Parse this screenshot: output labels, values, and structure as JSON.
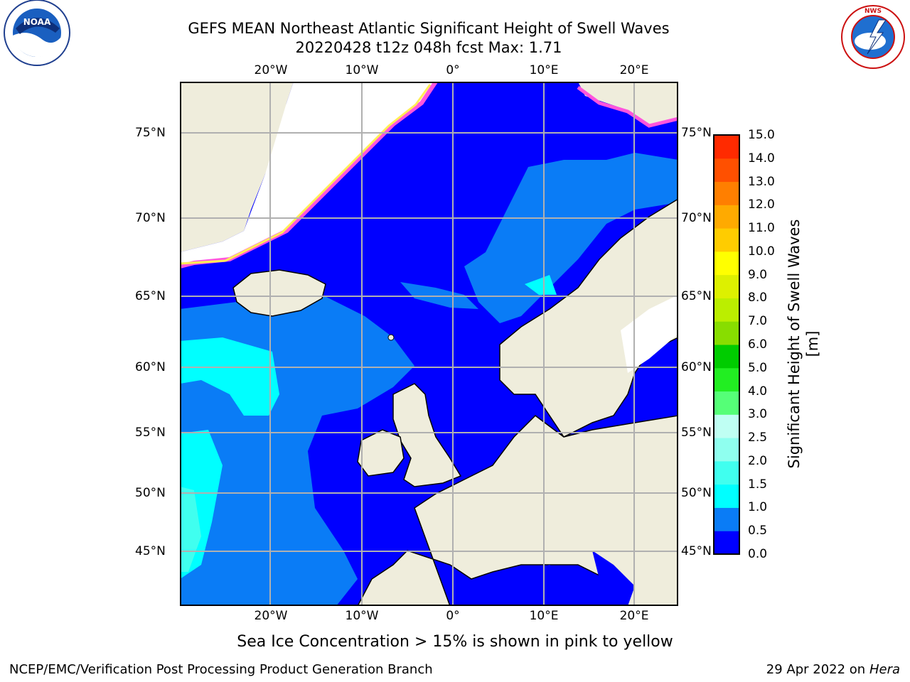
{
  "title": {
    "line1": "GEFS MEAN Northeast Atlantic Significant Height of Swell Waves",
    "line2": "20220428 t12z 048h fcst   Max: 1.71"
  },
  "map": {
    "projection": "Stereographic",
    "lon_range": [
      -30,
      25
    ],
    "lat_range": [
      41,
      78
    ],
    "grid": true,
    "lon_labels": [
      "20°W",
      "10°W",
      "0°",
      "10°E",
      "20°E"
    ],
    "lat_labels": [
      "75°N",
      "70°N",
      "65°N",
      "60°N",
      "55°N",
      "50°N",
      "45°N"
    ],
    "colors": {
      "ocean_low": "#0000ff",
      "ocean_mid": "#0a7cf6",
      "ocean_high": "#00ffff",
      "land": "#efeddc",
      "ice_pink": "#ff55dd",
      "ice_yellow": "#ffee55"
    }
  },
  "colorbar": {
    "label": "Significant Height of Swell Waves [m]",
    "ticks": [
      "0.0",
      "0.5",
      "1.0",
      "1.5",
      "2.0",
      "2.5",
      "3.0",
      "4.0",
      "5.0",
      "6.0",
      "7.0",
      "8.0",
      "9.0",
      "10.0",
      "11.0",
      "12.0",
      "13.0",
      "14.0",
      "15.0"
    ],
    "colors": [
      "#0000ff",
      "#0a7cf6",
      "#00ffff",
      "#40ffef",
      "#8fffef",
      "#bffff3",
      "#55ff77",
      "#22ee22",
      "#00cc00",
      "#88dd00",
      "#bbee00",
      "#ddf000",
      "#ffff00",
      "#ffcc00",
      "#ffaa00",
      "#ff7f00",
      "#ff5000",
      "#ff2a00",
      "#ff0000"
    ]
  },
  "footnote": "Sea Ice Concentration > 15% is shown in pink to yellow",
  "credit": "NCEP/EMC/Verification Post Processing Product Generation Branch",
  "date": {
    "text": "29 Apr 2022 on ",
    "host": "Hera"
  },
  "logos": {
    "left": "noaa-logo",
    "right": "nws-logo"
  }
}
